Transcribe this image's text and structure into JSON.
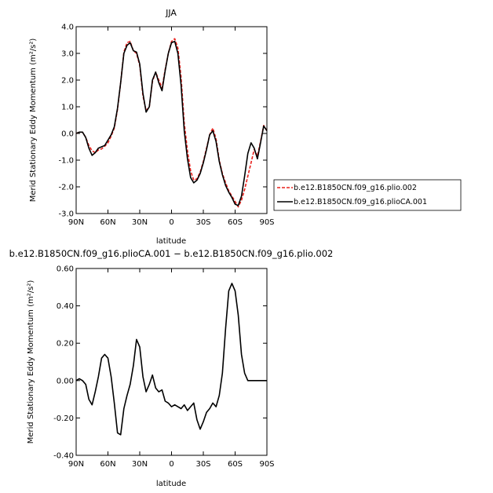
{
  "chart_data": [
    {
      "type": "line",
      "title": "JJA",
      "xlabel": "latitude",
      "ylabel": "Merid Stationary Eddy Momentum (m²/s²)",
      "xlim": [
        90,
        -90
      ],
      "ylim": [
        -3.0,
        4.0
      ],
      "x_tick_labels": [
        "90N",
        "60N",
        "30N",
        "0",
        "30S",
        "60S",
        "90S"
      ],
      "x_ticks": [
        90,
        60,
        30,
        0,
        -30,
        -60,
        -90
      ],
      "y_tick_labels": [
        "-3.0",
        "-2.0",
        "-1.0",
        "0.0",
        "1.0",
        "2.0",
        "3.0",
        "4.0"
      ],
      "y_ticks": [
        -3,
        -2,
        -1,
        0,
        1,
        2,
        3,
        4
      ],
      "legend_position": "right",
      "grid": false,
      "series": [
        {
          "name": "b.e12.B1850CN.f09_g16.plio.002",
          "color": "#e8201c",
          "dash": "dashed",
          "x": [
            90,
            87,
            84,
            81,
            78,
            75,
            72,
            69,
            66,
            63,
            60,
            57,
            54,
            51,
            48,
            45,
            42,
            39,
            36,
            33,
            30,
            27,
            24,
            21,
            18,
            15,
            12,
            9,
            6,
            3,
            0,
            -3,
            -6,
            -9,
            -12,
            -15,
            -18,
            -21,
            -24,
            -27,
            -30,
            -33,
            -36,
            -39,
            -42,
            -45,
            -48,
            -51,
            -54,
            -57,
            -60,
            -63,
            -66,
            -69,
            -72,
            -75,
            -78,
            -81,
            -84,
            -87,
            -90
          ],
          "y": [
            0.0,
            0.05,
            0.05,
            -0.15,
            -0.45,
            -0.65,
            -0.72,
            -0.62,
            -0.58,
            -0.48,
            -0.35,
            -0.1,
            0.2,
            0.9,
            1.9,
            3.05,
            3.4,
            3.45,
            3.1,
            3.0,
            2.55,
            1.4,
            0.85,
            1.0,
            1.95,
            2.3,
            2.0,
            1.7,
            2.4,
            3.0,
            3.45,
            3.55,
            3.2,
            2.1,
            0.4,
            -0.65,
            -1.4,
            -1.75,
            -1.7,
            -1.45,
            -1.05,
            -0.55,
            -0.05,
            0.2,
            -0.2,
            -1.0,
            -1.5,
            -1.85,
            -2.15,
            -2.35,
            -2.55,
            -2.75,
            -2.5,
            -2.1,
            -1.6,
            -1.1,
            -0.6,
            -0.85,
            -0.3,
            0.3,
            0.1
          ]
        },
        {
          "name": "b.e12.B1850CN.f09_g16.plioCA.001",
          "color": "#000000",
          "dash": "solid",
          "x": [
            90,
            87,
            84,
            81,
            78,
            75,
            72,
            69,
            66,
            63,
            60,
            57,
            54,
            51,
            48,
            45,
            42,
            39,
            36,
            33,
            30,
            27,
            24,
            21,
            18,
            15,
            12,
            9,
            6,
            3,
            0,
            -3,
            -6,
            -9,
            -12,
            -15,
            -18,
            -21,
            -24,
            -27,
            -30,
            -33,
            -36,
            -39,
            -42,
            -45,
            -48,
            -51,
            -54,
            -57,
            -60,
            -63,
            -66,
            -69,
            -72,
            -75,
            -78,
            -81,
            -84,
            -87,
            -90
          ],
          "y": [
            0.0,
            0.05,
            0.05,
            -0.15,
            -0.55,
            -0.82,
            -0.72,
            -0.55,
            -0.5,
            -0.45,
            -0.25,
            -0.05,
            0.25,
            0.95,
            1.9,
            3.0,
            3.3,
            3.4,
            3.1,
            3.05,
            2.6,
            1.5,
            0.8,
            1.0,
            2.0,
            2.3,
            1.9,
            1.6,
            2.35,
            3.0,
            3.4,
            3.45,
            3.0,
            1.8,
            0.1,
            -0.95,
            -1.65,
            -1.85,
            -1.75,
            -1.5,
            -1.1,
            -0.6,
            -0.05,
            0.1,
            -0.3,
            -1.05,
            -1.55,
            -1.95,
            -2.2,
            -2.4,
            -2.65,
            -2.7,
            -2.35,
            -1.6,
            -0.75,
            -0.35,
            -0.55,
            -0.95,
            -0.35,
            0.28,
            0.1
          ]
        }
      ]
    },
    {
      "type": "line",
      "title": "b.e12.B1850CN.f09_g16.plioCA.001 − b.e12.B1850CN.f09_g16.plio.002",
      "xlabel": "latitude",
      "ylabel": "Merid Stationary Eddy Momentum (m²/s²)",
      "xlim": [
        90,
        -90
      ],
      "ylim": [
        -0.4,
        0.6
      ],
      "x_tick_labels": [
        "90N",
        "60N",
        "30N",
        "0",
        "30S",
        "60S",
        "90S"
      ],
      "x_ticks": [
        90,
        60,
        30,
        0,
        -30,
        -60,
        -90
      ],
      "y_tick_labels": [
        "-0.40",
        "-0.20",
        "0.00",
        "0.20",
        "0.40",
        "0.60"
      ],
      "y_ticks": [
        -0.4,
        -0.2,
        0.0,
        0.2,
        0.4,
        0.6
      ],
      "grid": false,
      "series": [
        {
          "color": "#000000",
          "dash": "solid",
          "x": [
            90,
            87,
            84,
            81,
            78,
            75,
            72,
            69,
            66,
            63,
            60,
            57,
            54,
            51,
            48,
            45,
            42,
            39,
            36,
            33,
            30,
            27,
            24,
            21,
            18,
            15,
            12,
            9,
            6,
            3,
            0,
            -3,
            -6,
            -9,
            -12,
            -15,
            -18,
            -21,
            -24,
            -27,
            -30,
            -33,
            -36,
            -39,
            -42,
            -45,
            -48,
            -51,
            -54,
            -57,
            -60,
            -63,
            -66,
            -69,
            -72,
            -75,
            -78,
            -81,
            -84,
            -87,
            -90
          ],
          "y": [
            0.0,
            0.01,
            0.0,
            -0.02,
            -0.1,
            -0.13,
            -0.06,
            0.02,
            0.12,
            0.14,
            0.12,
            0.02,
            -0.12,
            -0.28,
            -0.29,
            -0.15,
            -0.08,
            -0.02,
            0.08,
            0.22,
            0.18,
            0.02,
            -0.06,
            -0.02,
            0.03,
            -0.04,
            -0.06,
            -0.05,
            -0.11,
            -0.12,
            -0.14,
            -0.13,
            -0.14,
            -0.15,
            -0.13,
            -0.16,
            -0.14,
            -0.12,
            -0.21,
            -0.26,
            -0.22,
            -0.17,
            -0.15,
            -0.12,
            -0.14,
            -0.08,
            0.04,
            0.28,
            0.48,
            0.52,
            0.48,
            0.35,
            0.14,
            0.04,
            0.0,
            0.0,
            0.0,
            0.0,
            0.0,
            0.0,
            0.0
          ]
        }
      ]
    }
  ]
}
